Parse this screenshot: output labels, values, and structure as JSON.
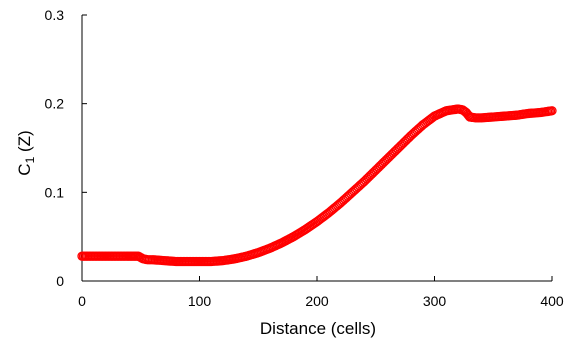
{
  "chart_data": {
    "type": "scatter",
    "title": "",
    "xlabel": "Distance (cells)",
    "ylabel_main": "C",
    "ylabel_sub": "1",
    "ylabel_suffix": " (Z)",
    "xlim": [
      0,
      400
    ],
    "ylim": [
      0,
      0.3
    ],
    "xticks": [
      0,
      100,
      200,
      300,
      400
    ],
    "yticks": [
      0,
      0.1,
      0.2,
      0.3
    ],
    "xtick_labels": [
      "0",
      "100",
      "200",
      "300",
      "400"
    ],
    "ytick_labels": [
      "0",
      "0.1",
      "0.2",
      "0.3"
    ],
    "grid": false,
    "series": [
      {
        "color": "#ff0000",
        "marker": "circle",
        "x": [
          0,
          10,
          20,
          30,
          40,
          48,
          52,
          56,
          60,
          70,
          80,
          90,
          100,
          110,
          120,
          130,
          140,
          150,
          160,
          170,
          180,
          190,
          200,
          210,
          220,
          230,
          240,
          250,
          260,
          270,
          280,
          290,
          300,
          305,
          310,
          315,
          320,
          324,
          327,
          330,
          335,
          340,
          350,
          360,
          370,
          380,
          390,
          400
        ],
        "y": [
          0.028,
          0.028,
          0.028,
          0.028,
          0.028,
          0.028,
          0.025,
          0.024,
          0.024,
          0.023,
          0.022,
          0.022,
          0.022,
          0.022,
          0.023,
          0.025,
          0.028,
          0.032,
          0.037,
          0.043,
          0.05,
          0.058,
          0.067,
          0.077,
          0.088,
          0.1,
          0.112,
          0.125,
          0.138,
          0.151,
          0.164,
          0.176,
          0.186,
          0.189,
          0.192,
          0.193,
          0.194,
          0.193,
          0.19,
          0.185,
          0.184,
          0.184,
          0.185,
          0.186,
          0.187,
          0.189,
          0.19,
          0.192
        ]
      }
    ]
  }
}
